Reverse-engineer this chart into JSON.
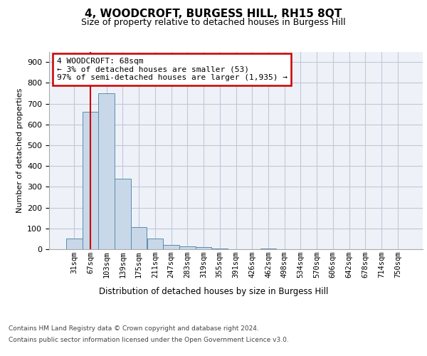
{
  "title": "4, WOODCROFT, BURGESS HILL, RH15 8QT",
  "subtitle": "Size of property relative to detached houses in Burgess Hill",
  "xlabel": "Distribution of detached houses by size in Burgess Hill",
  "ylabel": "Number of detached properties",
  "categories": [
    "31sqm",
    "67sqm",
    "103sqm",
    "139sqm",
    "175sqm",
    "211sqm",
    "247sqm",
    "283sqm",
    "319sqm",
    "355sqm",
    "391sqm",
    "426sqm",
    "462sqm",
    "498sqm",
    "534sqm",
    "570sqm",
    "606sqm",
    "642sqm",
    "678sqm",
    "714sqm",
    "750sqm"
  ],
  "bar_heights": [
    50,
    660,
    750,
    340,
    107,
    50,
    22,
    15,
    10,
    5,
    0,
    0,
    5,
    0,
    0,
    0,
    0,
    0,
    0,
    0,
    0
  ],
  "bar_color": "#c8d8e8",
  "bar_edge_color": "#5b8bb0",
  "grid_color": "#c0c8d8",
  "background_color": "#eef2f8",
  "vline_x": 1.0,
  "vline_color": "#cc0000",
  "annotation_text": "4 WOODCROFT: 68sqm\n← 3% of detached houses are smaller (53)\n97% of semi-detached houses are larger (1,935) →",
  "annotation_box_color": "#cc0000",
  "ylim": [
    0,
    950
  ],
  "yticks": [
    0,
    100,
    200,
    300,
    400,
    500,
    600,
    700,
    800,
    900
  ],
  "footer_line1": "Contains HM Land Registry data © Crown copyright and database right 2024.",
  "footer_line2": "Contains public sector information licensed under the Open Government Licence v3.0."
}
